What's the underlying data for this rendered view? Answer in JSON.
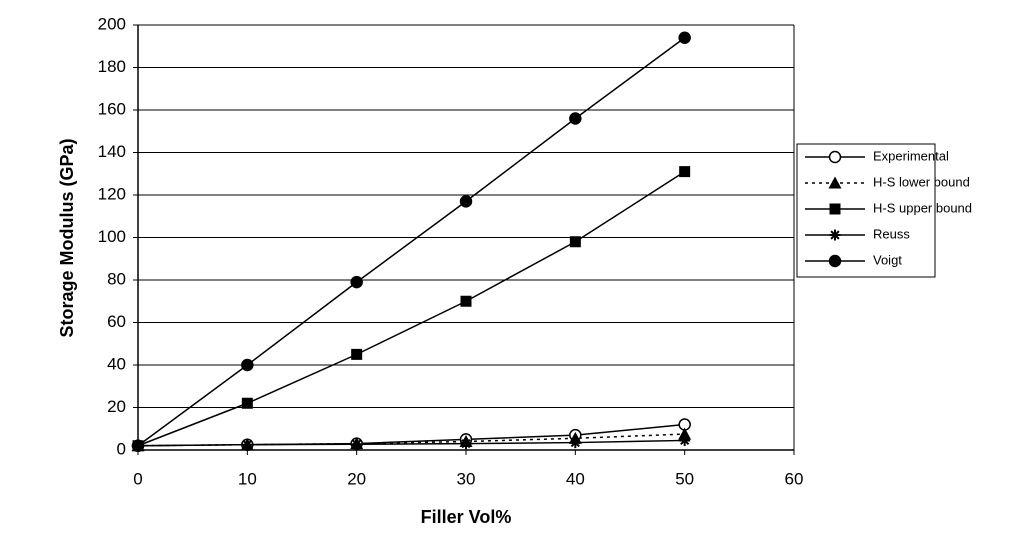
{
  "chart_data": {
    "type": "line",
    "x_label": "Filler Vol%",
    "y_label": "Storage Modulus (GPa)",
    "x": [
      0,
      10,
      20,
      30,
      40,
      50
    ],
    "series": [
      {
        "name": "Experimental",
        "color": "#000000",
        "marker": "circle-open",
        "dash": false,
        "values": [
          2,
          2.5,
          3,
          5,
          7,
          12
        ]
      },
      {
        "name": "H-S lower bound",
        "color": "#000000",
        "marker": "triangle",
        "dash": true,
        "values": [
          2,
          2.5,
          3,
          4,
          5.5,
          7.5
        ]
      },
      {
        "name": "H-S upper bound",
        "color": "#000000",
        "marker": "square",
        "dash": false,
        "values": [
          2,
          22,
          45,
          70,
          98,
          131
        ]
      },
      {
        "name": "Reuss",
        "color": "#000000",
        "marker": "asterisk",
        "dash": false,
        "values": [
          2,
          2.5,
          2.7,
          3,
          3.5,
          4.5
        ]
      },
      {
        "name": "Voigt",
        "color": "#000000",
        "marker": "circle",
        "dash": false,
        "values": [
          2,
          40,
          79,
          117,
          156,
          194
        ]
      }
    ],
    "xlim": [
      0,
      60
    ],
    "xticks": [
      0,
      10,
      20,
      30,
      40,
      50,
      60
    ],
    "ylim": [
      0,
      200
    ],
    "yticks": [
      0,
      20,
      40,
      60,
      80,
      100,
      120,
      140,
      160,
      180,
      200
    ],
    "grid": true,
    "legend": "right"
  }
}
